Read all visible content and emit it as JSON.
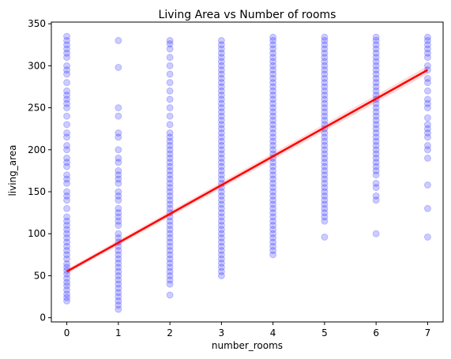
{
  "chart_data": {
    "type": "scatter",
    "title": "Living Area vs Number of rooms",
    "xlabel": "number_rooms",
    "ylabel": "living_area",
    "xlim": [
      -0.3,
      7.3
    ],
    "ylim": [
      -5,
      352
    ],
    "xticks": [
      0,
      1,
      2,
      3,
      4,
      5,
      6,
      7
    ],
    "yticks": [
      0,
      50,
      100,
      150,
      200,
      250,
      300,
      350
    ],
    "grid": false,
    "point_color": "#0000ff",
    "point_opacity": 0.2,
    "regression_color": "#ff0000",
    "regression_line": {
      "x": [
        0,
        7
      ],
      "y": [
        55,
        295
      ]
    },
    "points_by_category": [
      {
        "x": 0,
        "values": [
          20,
          24,
          28,
          33,
          38,
          42,
          47,
          52,
          56,
          60,
          64,
          70,
          75,
          80,
          85,
          90,
          95,
          100,
          105,
          110,
          115,
          120,
          130,
          140,
          145,
          150,
          160,
          165,
          170,
          180,
          185,
          190,
          200,
          205,
          215,
          220,
          230,
          240,
          250,
          255,
          260,
          265,
          270,
          280,
          290,
          295,
          300,
          310,
          315,
          320,
          325,
          330,
          335
        ]
      },
      {
        "x": 1,
        "values": [
          10,
          15,
          20,
          25,
          30,
          35,
          40,
          45,
          50,
          55,
          60,
          65,
          70,
          75,
          80,
          85,
          90,
          95,
          100,
          110,
          115,
          120,
          125,
          130,
          140,
          145,
          150,
          160,
          165,
          170,
          175,
          185,
          190,
          200,
          215,
          220,
          240,
          250,
          298,
          330
        ]
      },
      {
        "x": 2,
        "values": [
          27,
          40,
          45,
          50,
          55,
          60,
          65,
          70,
          75,
          80,
          85,
          90,
          95,
          100,
          105,
          110,
          115,
          120,
          125,
          130,
          135,
          140,
          145,
          150,
          155,
          160,
          165,
          170,
          175,
          180,
          185,
          190,
          195,
          200,
          205,
          210,
          215,
          220,
          230,
          240,
          250,
          260,
          270,
          280,
          290,
          300,
          310,
          320,
          326,
          330
        ]
      },
      {
        "x": 3,
        "values": [
          50,
          55,
          60,
          65,
          70,
          75,
          80,
          85,
          90,
          95,
          100,
          105,
          110,
          115,
          120,
          125,
          130,
          135,
          140,
          145,
          150,
          155,
          160,
          165,
          170,
          175,
          180,
          185,
          190,
          195,
          200,
          205,
          210,
          215,
          220,
          225,
          230,
          235,
          240,
          245,
          250,
          255,
          260,
          265,
          270,
          275,
          280,
          285,
          290,
          295,
          300,
          305,
          310,
          315,
          320,
          325,
          330
        ]
      },
      {
        "x": 4,
        "values": [
          75,
          80,
          85,
          90,
          95,
          100,
          105,
          110,
          115,
          120,
          125,
          130,
          135,
          140,
          145,
          150,
          155,
          160,
          165,
          170,
          175,
          180,
          185,
          190,
          195,
          200,
          205,
          210,
          215,
          220,
          225,
          230,
          235,
          240,
          245,
          250,
          255,
          260,
          265,
          270,
          275,
          280,
          285,
          290,
          295,
          300,
          305,
          310,
          315,
          320,
          325,
          330,
          334
        ]
      },
      {
        "x": 5,
        "values": [
          96,
          115,
          120,
          125,
          130,
          135,
          140,
          145,
          150,
          155,
          160,
          165,
          170,
          175,
          180,
          185,
          190,
          195,
          200,
          205,
          210,
          215,
          220,
          225,
          230,
          235,
          240,
          245,
          250,
          255,
          260,
          265,
          270,
          275,
          280,
          285,
          290,
          295,
          300,
          305,
          310,
          315,
          320,
          325,
          330,
          334
        ]
      },
      {
        "x": 6,
        "values": [
          100,
          140,
          145,
          155,
          160,
          170,
          175,
          180,
          185,
          190,
          195,
          200,
          205,
          210,
          215,
          220,
          225,
          230,
          235,
          240,
          245,
          250,
          255,
          260,
          265,
          270,
          275,
          280,
          285,
          290,
          295,
          300,
          305,
          310,
          315,
          320,
          325,
          330,
          334
        ]
      },
      {
        "x": 7,
        "values": [
          96,
          130,
          158,
          190,
          200,
          205,
          215,
          220,
          225,
          230,
          238,
          250,
          255,
          260,
          270,
          280,
          285,
          295,
          300,
          310,
          315,
          320,
          325,
          330,
          334
        ]
      }
    ]
  }
}
